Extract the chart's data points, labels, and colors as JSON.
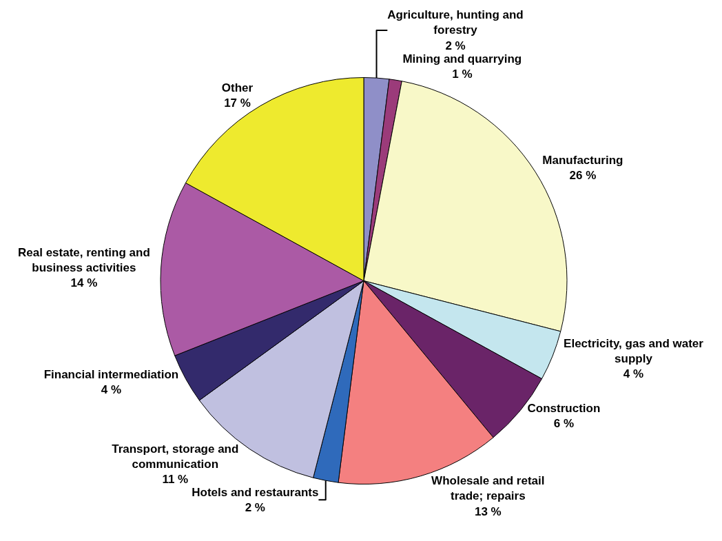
{
  "chart_data": {
    "type": "pie",
    "categories": [
      "Agriculture, hunting and forestry",
      "Mining and quarrying",
      "Manufacturing",
      "Electricity, gas and water supply",
      "Construction",
      "Wholesale and retail trade; repairs",
      "Hotels and restaurants",
      "Transport, storage and communication",
      "Financial intermediation",
      "Real estate, renting and business activities",
      "Other"
    ],
    "values": [
      2,
      1,
      26,
      4,
      6,
      13,
      2,
      11,
      4,
      14,
      17
    ],
    "value_labels": [
      "2 %",
      "1 %",
      "26 %",
      "4 %",
      "6 %",
      "13 %",
      "2 %",
      "11 %",
      "4 %",
      "14 %",
      "17 %"
    ],
    "colors": [
      "#8f8fc8",
      "#9b3b7a",
      "#f8f8c8",
      "#c4e6ee",
      "#6a2468",
      "#f48080",
      "#2f6abb",
      "#c0c0e0",
      "#332a6c",
      "#ab5aa5",
      "#eeea2e"
    ],
    "legend": false
  }
}
